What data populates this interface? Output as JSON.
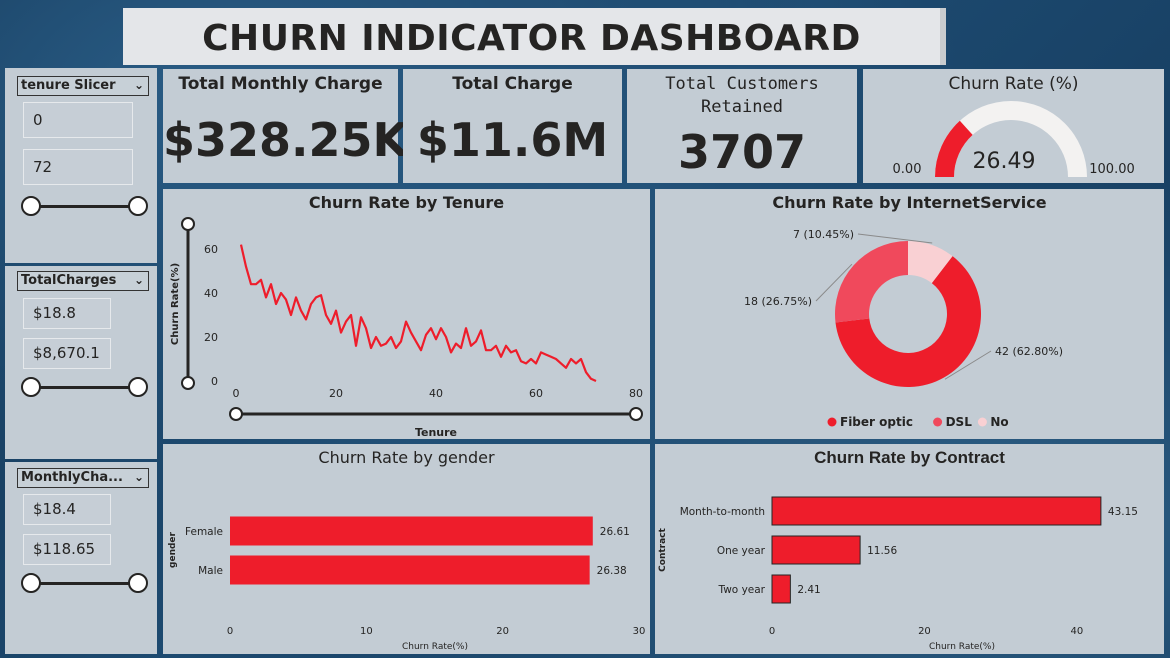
{
  "header": {
    "title": "CHURN INDICATOR DASHBOARD"
  },
  "kpis": {
    "monthly": {
      "label": "Total Monthly Charge",
      "value": "$328.25K"
    },
    "total": {
      "label": "Total Charge",
      "value": "$11.6M"
    },
    "retained": {
      "label_line1": "Total Customers",
      "label_line2": "Retained",
      "value": "3707"
    }
  },
  "gauge": {
    "title": "Churn Rate (%)",
    "min_label": "0.00",
    "max_label": "100.00",
    "value_label": "26.49",
    "value": 26.49,
    "min": 0,
    "max": 100
  },
  "slicers": {
    "tenure": {
      "title": "tenure Slicer",
      "min": "0",
      "max": "72"
    },
    "total_charges": {
      "title": "TotalCharges",
      "min": "$18.8",
      "max": "$8,670.1"
    },
    "monthly_charges": {
      "title": "MonthlyCha...",
      "min": "$18.4",
      "max": "$118.65"
    }
  },
  "colors": {
    "accent": "#ee1d2b",
    "dsl": "#f0495c",
    "no": "#f9d0d3",
    "text": "#252423"
  },
  "chart_data": [
    {
      "id": "tenure",
      "type": "line",
      "title": "Churn Rate by Tenure",
      "xlabel": "Tenure",
      "ylabel": "Churn Rate(%)",
      "xlim": [
        0,
        80
      ],
      "ylim": [
        0,
        60
      ],
      "xticks": [
        "0",
        "20",
        "40",
        "60",
        "80"
      ],
      "yticks": [
        "0",
        "20",
        "40",
        "60"
      ],
      "x": [
        1,
        2,
        3,
        4,
        5,
        6,
        7,
        8,
        9,
        10,
        11,
        12,
        13,
        14,
        15,
        16,
        17,
        18,
        19,
        20,
        21,
        22,
        23,
        24,
        25,
        26,
        27,
        28,
        29,
        30,
        31,
        32,
        33,
        34,
        35,
        36,
        37,
        38,
        39,
        40,
        41,
        42,
        43,
        44,
        45,
        46,
        47,
        48,
        49,
        50,
        51,
        52,
        53,
        54,
        55,
        56,
        57,
        58,
        59,
        60,
        61,
        62,
        63,
        64,
        65,
        66,
        67,
        68,
        69,
        70,
        71,
        72
      ],
      "y": [
        62,
        52,
        44,
        44,
        46,
        38,
        44,
        35,
        40,
        37,
        30,
        38,
        32,
        28,
        35,
        38,
        39,
        30,
        26,
        32,
        22,
        27,
        30,
        16,
        29,
        24,
        15,
        20,
        16,
        17,
        20,
        15,
        18,
        27,
        22,
        18,
        14,
        21,
        24,
        19,
        24,
        20,
        13,
        17,
        15,
        24,
        16,
        18,
        23,
        14,
        14,
        16,
        11,
        16,
        13,
        14,
        9,
        8,
        10,
        8,
        13,
        12,
        11,
        10,
        8,
        6,
        10,
        8,
        10,
        4,
        1,
        0
      ]
    },
    {
      "id": "internet",
      "type": "pie",
      "title": "Churn Rate by InternetService",
      "categories": [
        "Fiber optic",
        "DSL",
        "No"
      ],
      "values": [
        42,
        18,
        7
      ],
      "labels": [
        "42 (62.80%)",
        "18 (26.75%)",
        "7 (10.45%)"
      ],
      "legend": "bottom"
    },
    {
      "id": "gender",
      "type": "bar",
      "title": "Churn Rate by gender",
      "xlabel": "Churn Rate(%)",
      "ylabel": "gender",
      "categories": [
        "Female",
        "Male"
      ],
      "values": [
        26.61,
        26.38
      ],
      "xlim": [
        0,
        30
      ],
      "xticks": [
        "0",
        "10",
        "20",
        "30"
      ]
    },
    {
      "id": "contract",
      "type": "bar",
      "title": "Churn Rate by Contract",
      "xlabel": "Churn Rate(%)",
      "ylabel": "Contract",
      "categories": [
        "Month-to-month",
        "One year",
        "Two year"
      ],
      "values": [
        43.15,
        11.56,
        2.41
      ],
      "xlim": [
        0,
        45
      ],
      "xticks": [
        "0",
        "20",
        "40"
      ]
    }
  ]
}
